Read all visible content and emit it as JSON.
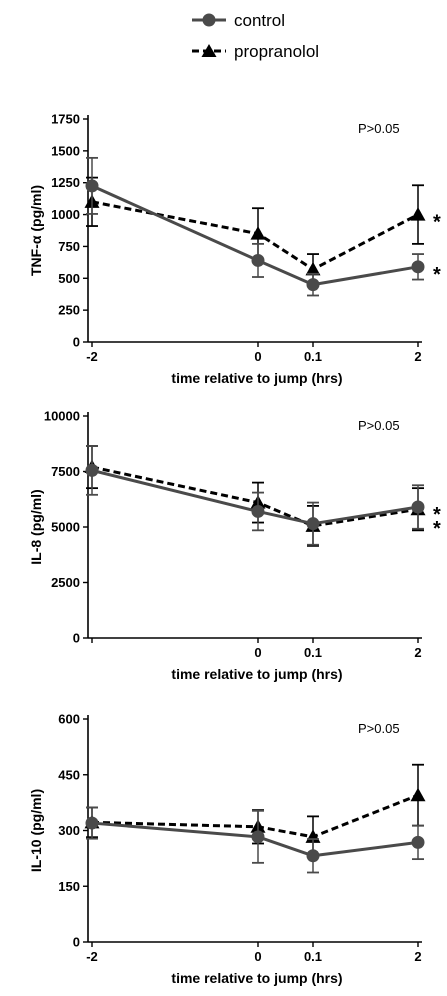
{
  "legend": [
    {
      "label": "control",
      "color": "#4a4a4a",
      "marker": "circle",
      "dash": "solid"
    },
    {
      "label": "propranolol",
      "color": "#000000",
      "marker": "triangle",
      "dash": "dashed"
    }
  ],
  "chart_data": [
    {
      "type": "line",
      "ylabel": "TNF-α (pg/ml)",
      "xlabel": "time relative to jump (hrs)",
      "annotation": "P>0.05",
      "x_ticks": [
        "-2",
        "0",
        "0.1",
        "2"
      ],
      "y_ticks": [
        "0",
        "250",
        "500",
        "750",
        "1000",
        "1250",
        "1500",
        "1750"
      ],
      "ylim": [
        0,
        1750
      ],
      "significance": [
        "*",
        "*"
      ],
      "series": [
        {
          "name": "control",
          "values": [
            1225,
            640,
            450,
            590
          ],
          "error": [
            220,
            130,
            85,
            100
          ]
        },
        {
          "name": "propranolol",
          "values": [
            1100,
            850,
            570,
            1000
          ],
          "error": [
            190,
            200,
            120,
            230
          ]
        }
      ]
    },
    {
      "type": "line",
      "ylabel": "IL-8 (pg/ml)",
      "xlabel": "time relative to jump (hrs)",
      "annotation": "P>0.05",
      "x_ticks": [
        "",
        "0",
        "0.1",
        "2"
      ],
      "y_ticks": [
        "0",
        "2500",
        "5000",
        "7500",
        "10000"
      ],
      "ylim": [
        0,
        10000
      ],
      "significance": [
        "*",
        "*"
      ],
      "series": [
        {
          "name": "control",
          "values": [
            7550,
            5700,
            5150,
            5900
          ],
          "error": [
            1100,
            850,
            950,
            980
          ]
        },
        {
          "name": "propranolol",
          "values": [
            7700,
            6100,
            5050,
            5800
          ],
          "error": [
            950,
            900,
            900,
            950
          ]
        }
      ]
    },
    {
      "type": "line",
      "ylabel": "IL-10 (pg/ml)",
      "xlabel": "time relative to jump (hrs)",
      "annotation": "P>0.05",
      "x_ticks": [
        "-2",
        "0",
        "0.1",
        "2"
      ],
      "y_ticks": [
        "0",
        "150",
        "300",
        "450",
        "600"
      ],
      "ylim": [
        0,
        600
      ],
      "significance": [],
      "series": [
        {
          "name": "control",
          "values": [
            320,
            283,
            232,
            268
          ],
          "error": [
            42,
            70,
            45,
            45
          ]
        },
        {
          "name": "propranolol",
          "values": [
            322,
            310,
            283,
            395
          ],
          "error": [
            40,
            45,
            55,
            82
          ]
        }
      ]
    }
  ]
}
